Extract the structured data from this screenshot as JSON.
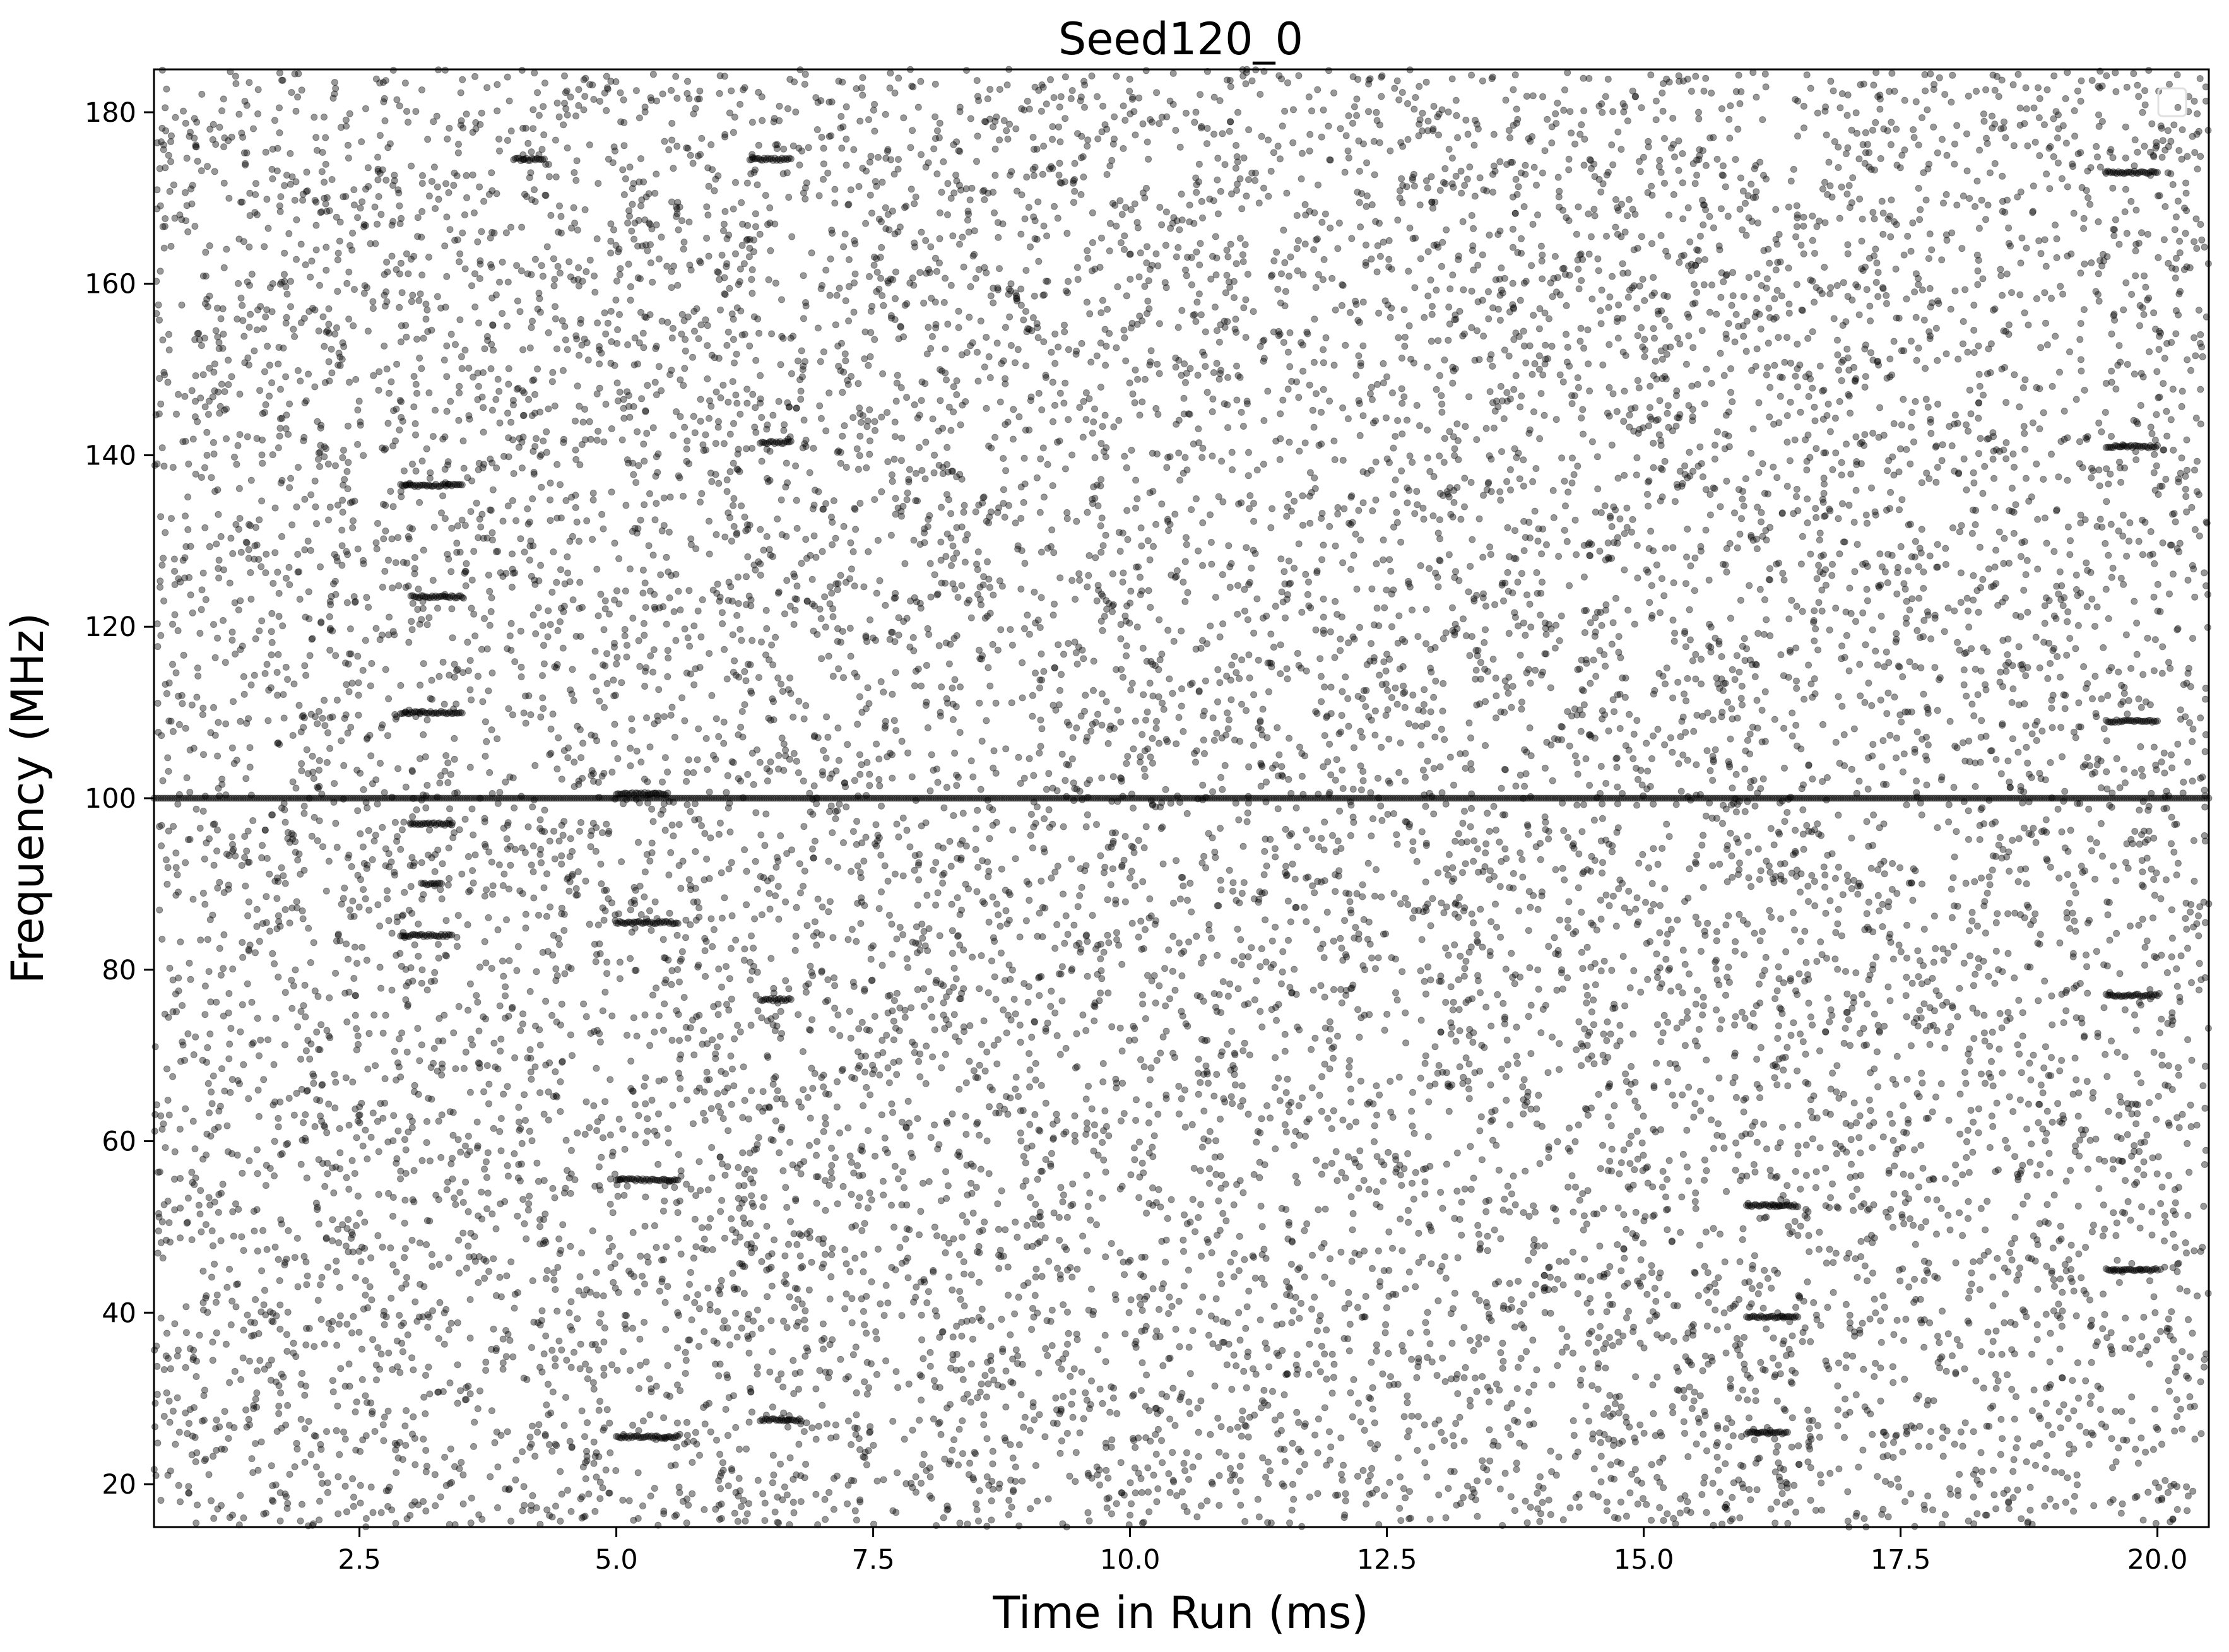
{
  "chart_data": {
    "type": "scatter",
    "title": "Seed120_0",
    "xlabel": "Time in Run (ms)",
    "ylabel": "Frequency (MHz)",
    "xlim": [
      0.5,
      20.5
    ],
    "ylim": [
      15,
      185
    ],
    "xticks": [
      2.5,
      5.0,
      7.5,
      10.0,
      12.5,
      15.0,
      17.5,
      20.0
    ],
    "xtick_labels": [
      "2.5",
      "5.0",
      "7.5",
      "10.0",
      "12.5",
      "15.0",
      "17.5",
      "20.0"
    ],
    "yticks": [
      20,
      40,
      60,
      80,
      100,
      120,
      140,
      160,
      180
    ],
    "ytick_labels": [
      "20",
      "40",
      "60",
      "80",
      "100",
      "120",
      "140",
      "160",
      "180"
    ],
    "grid": false,
    "legend": "top-right",
    "marker_color": "#000000",
    "marker_opacity": 0.4,
    "series": [
      {
        "description": "background noise points distributed uniformly over the full time/frequency range",
        "approx_point_count": 14000,
        "x_range": [
          0.5,
          20.5
        ],
        "y_range": [
          15,
          185
        ]
      },
      {
        "description": "dense continuous line of points at constant frequency",
        "x_range": [
          0.5,
          20.5
        ],
        "y": 100
      },
      {
        "description": "short horizontal streaks of dense points",
        "segments": [
          {
            "x": [
              2.9,
              3.5
            ],
            "y": 136.5
          },
          {
            "x": [
              3.0,
              3.5
            ],
            "y": 123.5
          },
          {
            "x": [
              2.9,
              3.5
            ],
            "y": 110.0
          },
          {
            "x": [
              3.0,
              3.4
            ],
            "y": 97.0
          },
          {
            "x": [
              3.1,
              3.3
            ],
            "y": 90.0
          },
          {
            "x": [
              2.9,
              3.4
            ],
            "y": 84.0
          },
          {
            "x": [
              5.0,
              5.5
            ],
            "y": 100.5
          },
          {
            "x": [
              5.0,
              5.6
            ],
            "y": 85.5
          },
          {
            "x": [
              5.0,
              5.6
            ],
            "y": 55.5
          },
          {
            "x": [
              5.0,
              5.6
            ],
            "y": 25.5
          },
          {
            "x": [
              6.4,
              6.7
            ],
            "y": 76.5
          },
          {
            "x": [
              6.4,
              6.8
            ],
            "y": 27.5
          },
          {
            "x": [
              6.4,
              6.7
            ],
            "y": 141.5
          },
          {
            "x": [
              6.3,
              6.7
            ],
            "y": 174.5
          },
          {
            "x": [
              4.0,
              4.3
            ],
            "y": 174.5
          },
          {
            "x": [
              16.0,
              16.5
            ],
            "y": 52.5
          },
          {
            "x": [
              16.0,
              16.5
            ],
            "y": 39.5
          },
          {
            "x": [
              16.0,
              16.4
            ],
            "y": 26.0
          },
          {
            "x": [
              19.5,
              20.0
            ],
            "y": 173.0
          },
          {
            "x": [
              19.5,
              20.0
            ],
            "y": 141.0
          },
          {
            "x": [
              19.5,
              20.0
            ],
            "y": 109.0
          },
          {
            "x": [
              19.5,
              20.0
            ],
            "y": 77.0
          },
          {
            "x": [
              19.5,
              20.0
            ],
            "y": 45.0
          }
        ]
      }
    ]
  }
}
